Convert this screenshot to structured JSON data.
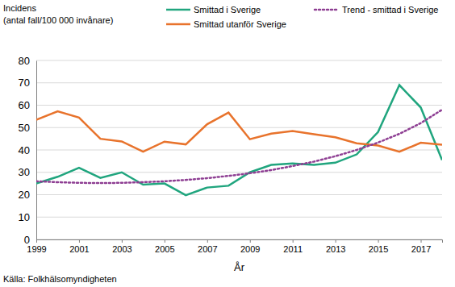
{
  "chart_data": {
    "type": "line",
    "ylabel": [
      "Incidens",
      "(antal fall/100 000 invånare)"
    ],
    "xlabel": "År",
    "source": "Källa: Folkhälsomyndigheten",
    "x": [
      1999,
      2000,
      2001,
      2002,
      2003,
      2004,
      2005,
      2006,
      2007,
      2008,
      2009,
      2010,
      2011,
      2012,
      2013,
      2014,
      2015,
      2016,
      2017,
      2018
    ],
    "series": [
      {
        "name": "Smittad i Sverige",
        "color": "#20a57e",
        "line_style": "solid",
        "values": [
          25,
          28,
          32,
          27.5,
          30,
          24.5,
          25,
          19.8,
          23.2,
          24,
          30,
          33.3,
          34,
          33.3,
          34.3,
          38,
          48,
          69,
          59,
          35.5
        ]
      },
      {
        "name": "Smittad utanför Sverige",
        "color": "#e8732c",
        "line_style": "solid",
        "values": [
          53.5,
          57.3,
          54.5,
          45,
          43.8,
          39.2,
          43.7,
          42.5,
          51.5,
          56.7,
          44.8,
          47.3,
          48.5,
          47,
          45.7,
          43,
          42,
          39.2,
          43.2,
          42.3
        ]
      },
      {
        "name": "Trend - smittad i Sverige",
        "color": "#8e3f93",
        "line_style": "dotted",
        "values": [
          26,
          25.6,
          25.3,
          25.2,
          25.3,
          25.6,
          26,
          26.6,
          27.4,
          28.4,
          29.6,
          31,
          32.8,
          34.8,
          37.2,
          40,
          43.3,
          47.2,
          52,
          58
        ]
      }
    ],
    "xlim": [
      1999,
      2018
    ],
    "xticks": [
      1999,
      2001,
      2003,
      2005,
      2007,
      2009,
      2011,
      2013,
      2015,
      2017
    ],
    "ylim": [
      0,
      80
    ],
    "yticks": [
      0,
      10,
      20,
      30,
      40,
      50,
      60,
      70,
      80
    ],
    "grid": true,
    "legend": "top"
  }
}
